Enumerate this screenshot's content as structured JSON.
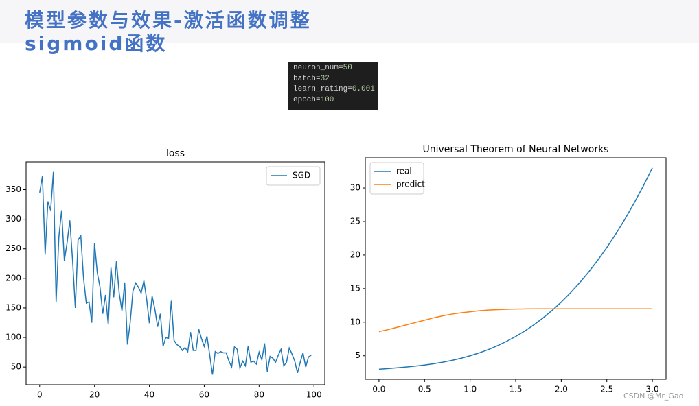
{
  "header": {
    "title": "模型参数与效果-激活函数调整",
    "subtitle": "sigmoid函数"
  },
  "code": {
    "lines": [
      {
        "name": "neuron_num=",
        "value": "50"
      },
      {
        "name": "batch=",
        "value": "32"
      },
      {
        "name": "learn_rating=",
        "value": "0.001"
      },
      {
        "name": "epoch=",
        "value": "100"
      }
    ]
  },
  "watermark": "CSDN @Mr_Gao",
  "chart_data": [
    {
      "type": "line",
      "title": "loss",
      "legend": "upper right",
      "x": [
        0,
        1,
        2,
        3,
        4,
        5,
        6,
        7,
        8,
        9,
        10,
        11,
        12,
        13,
        14,
        15,
        16,
        17,
        18,
        19,
        20,
        21,
        22,
        23,
        24,
        25,
        26,
        27,
        28,
        29,
        30,
        31,
        32,
        33,
        34,
        35,
        36,
        37,
        38,
        39,
        40,
        41,
        42,
        43,
        44,
        45,
        46,
        47,
        48,
        49,
        50,
        51,
        52,
        53,
        54,
        55,
        56,
        57,
        58,
        59,
        60,
        61,
        62,
        63,
        64,
        65,
        66,
        67,
        68,
        69,
        70,
        71,
        72,
        73,
        74,
        75,
        76,
        77,
        78,
        79,
        80,
        81,
        82,
        83,
        84,
        85,
        86,
        87,
        88,
        89,
        90,
        91,
        92,
        93,
        94,
        95,
        96,
        97,
        98,
        99
      ],
      "series": [
        {
          "name": "SGD",
          "color": "#1f77b4",
          "values": [
            345,
            373,
            240,
            330,
            315,
            380,
            160,
            270,
            315,
            230,
            260,
            298,
            230,
            150,
            265,
            272,
            200,
            158,
            160,
            125,
            260,
            210,
            185,
            140,
            172,
            122,
            218,
            168,
            229,
            175,
            145,
            193,
            88,
            125,
            178,
            192,
            185,
            175,
            196,
            165,
            124,
            170,
            148,
            118,
            140,
            85,
            100,
            98,
            162,
            95,
            88,
            85,
            78,
            83,
            76,
            109,
            78,
            78,
            114,
            98,
            85,
            102,
            70,
            37,
            76,
            73,
            76,
            74,
            74,
            60,
            50,
            84,
            80,
            48,
            60,
            52,
            85,
            58,
            60,
            55,
            75,
            62,
            90,
            42,
            68,
            65,
            58,
            70,
            80,
            52,
            58,
            82,
            72,
            60,
            40,
            58,
            74,
            50,
            67,
            70
          ]
        }
      ],
      "xlim": [
        -4.95,
        103.95
      ],
      "xticks": [
        0,
        20,
        40,
        60,
        80,
        100
      ],
      "ylim": [
        20,
        397
      ],
      "yticks": [
        50,
        100,
        150,
        200,
        250,
        300,
        350
      ]
    },
    {
      "type": "line",
      "title": "Universal Theorem of Neural Networks",
      "legend": "upper left",
      "x": [
        0,
        0.1,
        0.2,
        0.3,
        0.4,
        0.5,
        0.6,
        0.7,
        0.8,
        0.9,
        1.0,
        1.1,
        1.2,
        1.3,
        1.4,
        1.5,
        1.6,
        1.7,
        1.8,
        1.9,
        2.0,
        2.1,
        2.2,
        2.3,
        2.4,
        2.5,
        2.6,
        2.7,
        2.8,
        2.9,
        3.0
      ],
      "series": [
        {
          "name": "real",
          "color": "#1f77b4",
          "values": [
            3,
            3.101,
            3.208,
            3.327,
            3.464,
            3.625,
            3.816,
            4.043,
            4.312,
            4.629,
            5,
            5.431,
            5.928,
            6.497,
            7.144,
            7.875,
            8.696,
            9.613,
            10.632,
            11.759,
            13,
            14.361,
            15.848,
            17.467,
            19.224,
            21.125,
            23.176,
            25.383,
            27.752,
            30.289,
            33
          ]
        },
        {
          "name": "predict",
          "color": "#ff7f0e",
          "values": [
            8.6,
            8.9,
            9.25,
            9.6,
            9.95,
            10.3,
            10.65,
            10.95,
            11.2,
            11.4,
            11.55,
            11.7,
            11.8,
            11.87,
            11.92,
            11.96,
            11.98,
            12,
            12,
            12,
            12,
            12,
            12,
            12,
            12,
            12,
            12,
            12,
            12,
            12,
            12
          ]
        }
      ],
      "xlim": [
        -0.15,
        3.15
      ],
      "xticks": [
        {
          "value": 0,
          "label": "0.0"
        },
        {
          "value": 0.5,
          "label": "0.5"
        },
        {
          "value": 1,
          "label": "1.0"
        },
        {
          "value": 1.5,
          "label": "1.5"
        },
        {
          "value": 2,
          "label": "2.0"
        },
        {
          "value": 2.5,
          "label": "2.5"
        },
        {
          "value": 3,
          "label": "3.0"
        }
      ],
      "ylim": [
        1.5,
        34.5
      ],
      "yticks": [
        5,
        10,
        15,
        20,
        25,
        30
      ]
    }
  ]
}
